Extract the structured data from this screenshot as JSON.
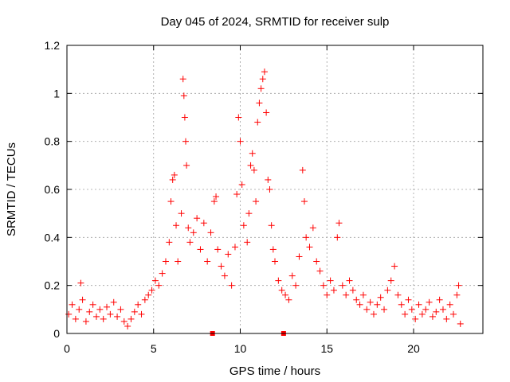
{
  "chart_data": {
    "type": "scatter",
    "title": "Day 045 of 2024, SRMTID for receiver sulp",
    "xlabel": "GPS time / hours",
    "ylabel": "SRMTID / TECUs",
    "xlim": [
      0,
      24
    ],
    "ylim": [
      0,
      1.2
    ],
    "xticks": [
      0,
      5,
      10,
      15,
      20
    ],
    "yticks": [
      0,
      0.2,
      0.4,
      0.6,
      0.8,
      1.0,
      1.2
    ],
    "xtick_labels": [
      "0",
      "5",
      "10",
      "15",
      "20"
    ],
    "ytick_labels": [
      "0",
      "0.2",
      "0.4",
      "0.6",
      "0.8",
      "1",
      "1.2"
    ],
    "grid": true,
    "marker": "+",
    "color": "#ff0000",
    "series": [
      {
        "name": "SRMTID",
        "points": [
          [
            0.1,
            0.08
          ],
          [
            0.3,
            0.12
          ],
          [
            0.5,
            0.06
          ],
          [
            0.7,
            0.1
          ],
          [
            0.8,
            0.21
          ],
          [
            0.9,
            0.14
          ],
          [
            1.1,
            0.05
          ],
          [
            1.3,
            0.09
          ],
          [
            1.5,
            0.12
          ],
          [
            1.7,
            0.07
          ],
          [
            1.9,
            0.1
          ],
          [
            2.1,
            0.06
          ],
          [
            2.3,
            0.11
          ],
          [
            2.5,
            0.08
          ],
          [
            2.7,
            0.13
          ],
          [
            2.9,
            0.07
          ],
          [
            3.1,
            0.1
          ],
          [
            3.3,
            0.05
          ],
          [
            3.5,
            0.03
          ],
          [
            3.7,
            0.06
          ],
          [
            3.9,
            0.09
          ],
          [
            4.1,
            0.12
          ],
          [
            4.3,
            0.08
          ],
          [
            4.5,
            0.14
          ],
          [
            4.7,
            0.16
          ],
          [
            4.9,
            0.18
          ],
          [
            5.1,
            0.22
          ],
          [
            5.3,
            0.2
          ],
          [
            5.5,
            0.25
          ],
          [
            5.7,
            0.3
          ],
          [
            5.9,
            0.38
          ],
          [
            6.0,
            0.55
          ],
          [
            6.1,
            0.64
          ],
          [
            6.2,
            0.66
          ],
          [
            6.3,
            0.45
          ],
          [
            6.4,
            0.3
          ],
          [
            6.6,
            0.5
          ],
          [
            6.7,
            1.06
          ],
          [
            6.75,
            0.99
          ],
          [
            6.8,
            0.9
          ],
          [
            6.85,
            0.8
          ],
          [
            6.9,
            0.7
          ],
          [
            7.0,
            0.44
          ],
          [
            7.1,
            0.38
          ],
          [
            7.3,
            0.42
          ],
          [
            7.5,
            0.48
          ],
          [
            7.7,
            0.35
          ],
          [
            7.9,
            0.46
          ],
          [
            8.1,
            0.3
          ],
          [
            8.3,
            0.42
          ],
          [
            8.5,
            0.55
          ],
          [
            8.6,
            0.57
          ],
          [
            8.7,
            0.35
          ],
          [
            8.9,
            0.28
          ],
          [
            9.1,
            0.24
          ],
          [
            9.3,
            0.33
          ],
          [
            9.5,
            0.2
          ],
          [
            9.7,
            0.36
          ],
          [
            9.8,
            0.58
          ],
          [
            9.9,
            0.9
          ],
          [
            10.0,
            0.8
          ],
          [
            10.1,
            0.62
          ],
          [
            10.2,
            0.45
          ],
          [
            10.4,
            0.38
          ],
          [
            10.5,
            0.5
          ],
          [
            10.6,
            0.7
          ],
          [
            10.7,
            0.75
          ],
          [
            10.8,
            0.68
          ],
          [
            10.9,
            0.55
          ],
          [
            11.0,
            0.88
          ],
          [
            11.1,
            0.96
          ],
          [
            11.2,
            1.02
          ],
          [
            11.3,
            1.06
          ],
          [
            11.4,
            1.09
          ],
          [
            11.5,
            0.92
          ],
          [
            11.6,
            0.64
          ],
          [
            11.7,
            0.6
          ],
          [
            11.8,
            0.45
          ],
          [
            11.9,
            0.35
          ],
          [
            12.0,
            0.3
          ],
          [
            12.2,
            0.22
          ],
          [
            12.4,
            0.18
          ],
          [
            12.6,
            0.16
          ],
          [
            12.8,
            0.14
          ],
          [
            13.0,
            0.24
          ],
          [
            13.2,
            0.2
          ],
          [
            13.4,
            0.32
          ],
          [
            13.6,
            0.68
          ],
          [
            13.7,
            0.55
          ],
          [
            13.8,
            0.4
          ],
          [
            14.0,
            0.36
          ],
          [
            14.2,
            0.44
          ],
          [
            14.4,
            0.3
          ],
          [
            14.6,
            0.26
          ],
          [
            14.8,
            0.2
          ],
          [
            15.0,
            0.16
          ],
          [
            15.2,
            0.22
          ],
          [
            15.4,
            0.18
          ],
          [
            15.6,
            0.4
          ],
          [
            15.7,
            0.46
          ],
          [
            15.9,
            0.2
          ],
          [
            16.1,
            0.16
          ],
          [
            16.3,
            0.22
          ],
          [
            16.5,
            0.18
          ],
          [
            16.7,
            0.14
          ],
          [
            16.9,
            0.12
          ],
          [
            17.1,
            0.16
          ],
          [
            17.3,
            0.1
          ],
          [
            17.5,
            0.13
          ],
          [
            17.7,
            0.08
          ],
          [
            17.9,
            0.12
          ],
          [
            18.1,
            0.15
          ],
          [
            18.3,
            0.1
          ],
          [
            18.5,
            0.18
          ],
          [
            18.7,
            0.22
          ],
          [
            18.9,
            0.28
          ],
          [
            19.1,
            0.16
          ],
          [
            19.3,
            0.12
          ],
          [
            19.5,
            0.08
          ],
          [
            19.7,
            0.14
          ],
          [
            19.9,
            0.1
          ],
          [
            20.1,
            0.06
          ],
          [
            20.3,
            0.12
          ],
          [
            20.5,
            0.08
          ],
          [
            20.7,
            0.1
          ],
          [
            20.9,
            0.13
          ],
          [
            21.1,
            0.07
          ],
          [
            21.3,
            0.09
          ],
          [
            21.5,
            0.14
          ],
          [
            21.7,
            0.1
          ],
          [
            21.9,
            0.06
          ],
          [
            22.1,
            0.12
          ],
          [
            22.3,
            0.08
          ],
          [
            22.5,
            0.16
          ],
          [
            22.6,
            0.2
          ],
          [
            22.7,
            0.04
          ]
        ]
      }
    ],
    "bad_points_x": [
      8.4,
      12.5
    ]
  }
}
